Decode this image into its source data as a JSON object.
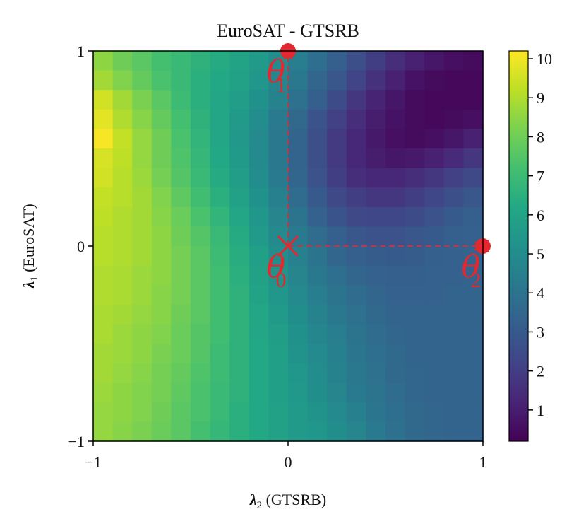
{
  "chart_data": {
    "type": "heatmap",
    "title": "EuroSAT - GTSRB",
    "xlabel": {
      "symbol": "λ",
      "sub": "2",
      "text": " (GTSRB)"
    },
    "ylabel": {
      "symbol": "λ",
      "sub": "1",
      "text": " (EuroSAT)"
    },
    "xlim": [
      -1,
      1
    ],
    "ylim": [
      -1,
      1
    ],
    "xticks": [
      {
        "value": -1,
        "label": "−1"
      },
      {
        "value": 0,
        "label": "0"
      },
      {
        "value": 1,
        "label": "1"
      }
    ],
    "yticks": [
      {
        "value": -1,
        "label": "−1"
      },
      {
        "value": 0,
        "label": "0"
      },
      {
        "value": 1,
        "label": "1"
      }
    ],
    "colormap": "viridis",
    "colorbar": {
      "min": 0.2,
      "max": 10.2,
      "ticks": [
        {
          "value": 1,
          "label": "1"
        },
        {
          "value": 2,
          "label": "2"
        },
        {
          "value": 3,
          "label": "3"
        },
        {
          "value": 4,
          "label": "4"
        },
        {
          "value": 5,
          "label": "5"
        },
        {
          "value": 6,
          "label": "6"
        },
        {
          "value": 7,
          "label": "7"
        },
        {
          "value": 8,
          "label": "8"
        },
        {
          "value": 9,
          "label": "9"
        },
        {
          "value": 10,
          "label": "10"
        }
      ]
    },
    "grid_size": 20,
    "row_order": "top-to-bottom (λ1 from 1 to -1)",
    "values": [
      [
        8.5,
        8.0,
        7.6,
        7.2,
        6.9,
        6.6,
        6.3,
        6.0,
        5.6,
        5.0,
        4.4,
        3.8,
        3.2,
        2.6,
        2.0,
        1.5,
        1.1,
        0.8,
        0.6,
        0.5
      ],
      [
        8.8,
        8.3,
        7.8,
        7.3,
        6.9,
        6.5,
        6.2,
        5.9,
        5.4,
        4.8,
        4.2,
        3.5,
        2.9,
        2.2,
        1.6,
        1.1,
        0.7,
        0.5,
        0.4,
        0.4
      ],
      [
        9.5,
        8.8,
        8.2,
        7.6,
        7.0,
        6.5,
        6.1,
        5.7,
        5.2,
        4.6,
        3.9,
        3.2,
        2.5,
        1.8,
        1.2,
        0.8,
        0.5,
        0.4,
        0.4,
        0.4
      ],
      [
        9.8,
        9.0,
        8.4,
        7.8,
        7.2,
        6.6,
        6.1,
        5.6,
        5.0,
        4.3,
        3.6,
        2.8,
        2.1,
        1.5,
        1.0,
        0.7,
        0.5,
        0.4,
        0.5,
        0.6
      ],
      [
        10.1,
        9.3,
        8.6,
        8.0,
        7.3,
        6.7,
        6.1,
        5.5,
        4.9,
        4.2,
        3.4,
        2.6,
        1.9,
        1.3,
        0.9,
        0.6,
        0.5,
        0.6,
        0.8,
        1.1
      ],
      [
        9.6,
        9.2,
        8.6,
        8.0,
        7.4,
        6.8,
        6.2,
        5.6,
        4.9,
        4.2,
        3.4,
        2.6,
        1.9,
        1.3,
        1.0,
        0.8,
        0.9,
        1.1,
        1.4,
        1.8
      ],
      [
        9.5,
        9.1,
        8.7,
        8.1,
        7.5,
        6.9,
        6.3,
        5.7,
        5.0,
        4.3,
        3.5,
        2.7,
        2.0,
        1.5,
        1.3,
        1.3,
        1.5,
        1.8,
        2.1,
        2.4
      ],
      [
        9.3,
        9.1,
        8.8,
        8.3,
        7.7,
        7.1,
        6.5,
        5.9,
        5.2,
        4.5,
        3.7,
        3.0,
        2.4,
        2.0,
        1.8,
        1.8,
        2.0,
        2.3,
        2.6,
        2.9
      ],
      [
        9.2,
        9.0,
        8.8,
        8.4,
        7.9,
        7.3,
        6.7,
        6.1,
        5.4,
        4.7,
        4.0,
        3.3,
        2.8,
        2.4,
        2.3,
        2.3,
        2.5,
        2.7,
        3.0,
        3.2
      ],
      [
        9.1,
        9.0,
        8.8,
        8.5,
        8.0,
        7.5,
        6.9,
        6.3,
        5.6,
        4.9,
        4.3,
        3.7,
        3.2,
        2.9,
        2.7,
        2.7,
        2.9,
        3.0,
        3.2,
        3.3
      ],
      [
        9.1,
        9.0,
        8.8,
        8.5,
        8.1,
        7.6,
        7.0,
        6.4,
        5.8,
        5.1,
        4.5,
        4.0,
        3.5,
        3.2,
        3.1,
        3.0,
        3.1,
        3.2,
        3.3,
        3.4
      ],
      [
        9.0,
        8.9,
        8.7,
        8.5,
        8.1,
        7.6,
        7.1,
        6.5,
        5.9,
        5.3,
        4.7,
        4.2,
        3.8,
        3.5,
        3.3,
        3.2,
        3.2,
        3.3,
        3.3,
        3.4
      ],
      [
        9.0,
        8.9,
        8.7,
        8.4,
        8.1,
        7.6,
        7.1,
        6.6,
        6.0,
        5.4,
        4.9,
        4.4,
        4.0,
        3.7,
        3.5,
        3.3,
        3.3,
        3.3,
        3.4,
        3.4
      ],
      [
        8.9,
        8.8,
        8.6,
        8.4,
        8.0,
        7.6,
        7.1,
        6.6,
        6.1,
        5.6,
        5.1,
        4.6,
        4.2,
        3.9,
        3.6,
        3.4,
        3.4,
        3.4,
        3.4,
        3.4
      ],
      [
        8.9,
        8.7,
        8.5,
        8.3,
        7.9,
        7.5,
        7.1,
        6.6,
        6.1,
        5.7,
        5.2,
        4.8,
        4.4,
        4.0,
        3.7,
        3.5,
        3.4,
        3.4,
        3.4,
        3.4
      ],
      [
        8.8,
        8.7,
        8.5,
        8.2,
        7.9,
        7.5,
        7.0,
        6.6,
        6.2,
        5.8,
        5.3,
        4.9,
        4.5,
        4.1,
        3.8,
        3.6,
        3.4,
        3.4,
        3.4,
        3.4
      ],
      [
        8.8,
        8.6,
        8.4,
        8.1,
        7.8,
        7.4,
        7.0,
        6.6,
        6.2,
        5.8,
        5.4,
        5.0,
        4.6,
        4.2,
        3.9,
        3.6,
        3.5,
        3.4,
        3.4,
        3.4
      ],
      [
        8.7,
        8.5,
        8.3,
        8.1,
        7.7,
        7.3,
        6.9,
        6.6,
        6.2,
        5.8,
        5.5,
        5.1,
        4.7,
        4.3,
        4.0,
        3.7,
        3.5,
        3.4,
        3.4,
        3.4
      ],
      [
        8.6,
        8.5,
        8.3,
        8.0,
        7.6,
        7.3,
        6.9,
        6.5,
        6.2,
        5.9,
        5.6,
        5.3,
        4.9,
        4.5,
        4.1,
        3.8,
        3.6,
        3.5,
        3.4,
        3.4
      ],
      [
        8.6,
        8.4,
        8.2,
        7.9,
        7.6,
        7.2,
        6.8,
        6.5,
        6.2,
        5.9,
        5.6,
        5.4,
        5.1,
        4.7,
        4.3,
        3.9,
        3.6,
        3.5,
        3.4,
        3.4
      ]
    ],
    "annotations": {
      "color": "#e3282f",
      "points": [
        {
          "name": "theta0",
          "label": "θ",
          "sub": "0",
          "x": 0,
          "y": 0,
          "marker": "x"
        },
        {
          "name": "theta1",
          "label": "θ",
          "sub": "1",
          "x": 0,
          "y": 1,
          "marker": "dot"
        },
        {
          "name": "theta2",
          "label": "θ",
          "sub": "2",
          "x": 1,
          "y": 0,
          "marker": "dot"
        }
      ],
      "arrows": [
        {
          "from": [
            0,
            0
          ],
          "to": [
            0,
            1
          ],
          "style": "dashed"
        },
        {
          "from": [
            0,
            0
          ],
          "to": [
            1,
            0
          ],
          "style": "dashed"
        }
      ]
    }
  }
}
